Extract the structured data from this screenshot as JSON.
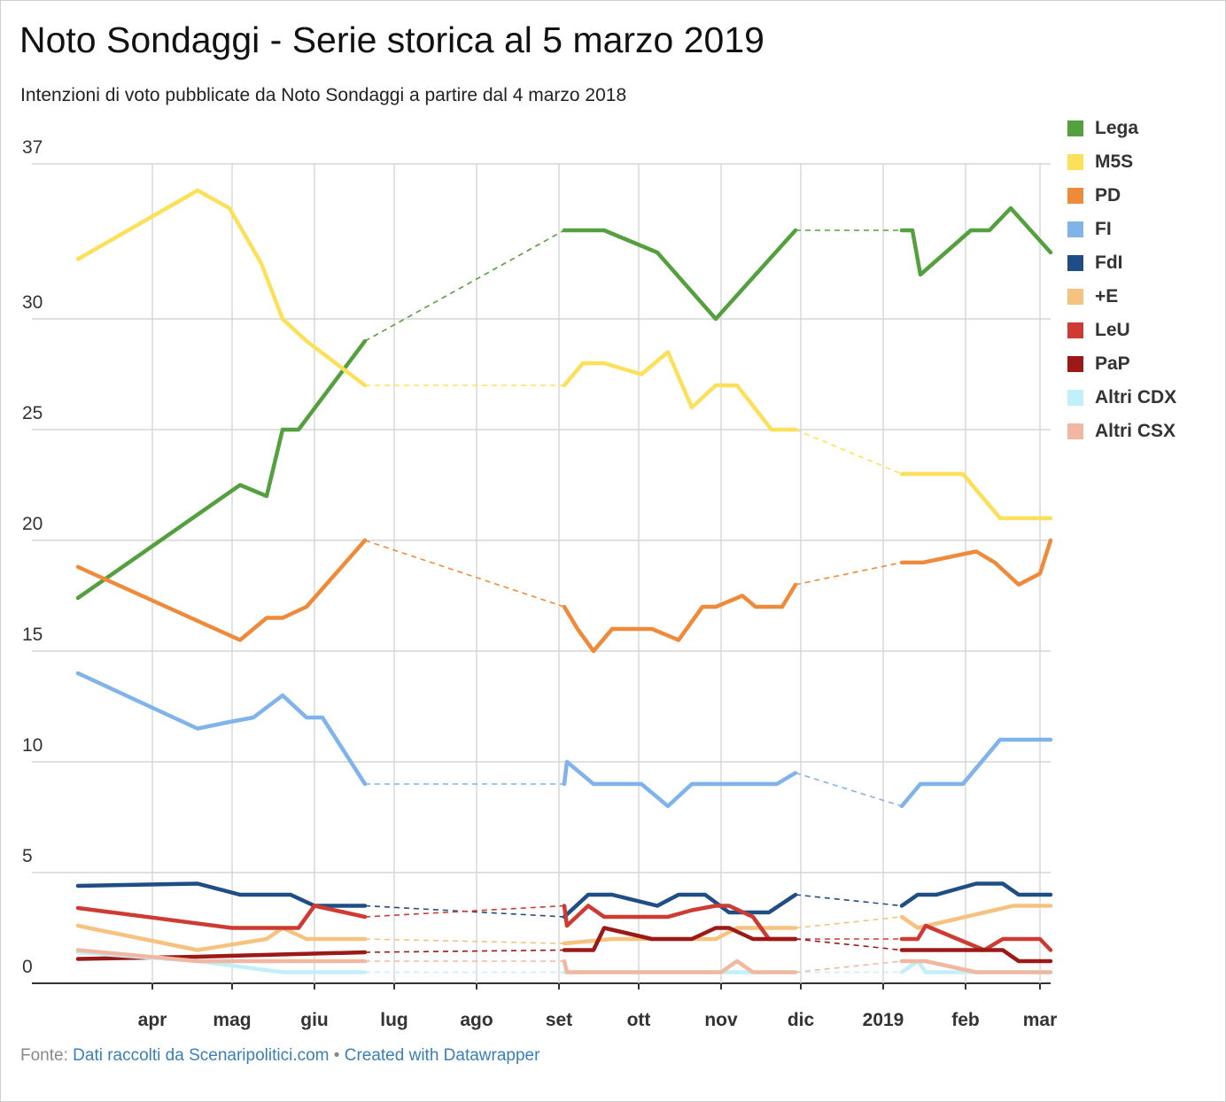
{
  "title": "Noto Sondaggi - Serie storica al 5 marzo 2019",
  "subtitle": "Intenzioni di voto pubblicate da Noto Sondaggi a partire dal 4 marzo 2018",
  "footer": {
    "source_prefix": "Fonte:",
    "source_link": "Dati raccolti da Scenaripolitici.com",
    "separator": "•",
    "credit_link": "Created with Datawrapper"
  },
  "chart_data": {
    "type": "line",
    "ylim": [
      0,
      37
    ],
    "ylabels": [
      {
        "value": 0,
        "label": "0"
      },
      {
        "value": 5,
        "label": "5"
      },
      {
        "value": 10,
        "label": "10"
      },
      {
        "value": 15,
        "label": "15"
      },
      {
        "value": 20,
        "label": "20"
      },
      {
        "value": 25,
        "label": "25"
      },
      {
        "value": 30,
        "label": "30"
      },
      {
        "value": 37,
        "label": "37"
      }
    ],
    "xlim": [
      "2018-03-04",
      "2019-03-05"
    ],
    "month_ticks": [
      {
        "date": "2018-04-01",
        "label": "apr"
      },
      {
        "date": "2018-05-01",
        "label": "mag"
      },
      {
        "date": "2018-06-01",
        "label": "giu"
      },
      {
        "date": "2018-07-01",
        "label": "lug"
      },
      {
        "date": "2018-08-01",
        "label": "ago"
      },
      {
        "date": "2018-09-01",
        "label": "set"
      },
      {
        "date": "2018-10-01",
        "label": "ott"
      },
      {
        "date": "2018-11-01",
        "label": "nov"
      },
      {
        "date": "2018-12-01",
        "label": "dic"
      },
      {
        "date": "2019-01-01",
        "label": "2019"
      },
      {
        "date": "2019-02-01",
        "label": "feb"
      },
      {
        "date": "2019-03-01",
        "label": "mar"
      }
    ],
    "gaps": [
      [
        "2018-06-20",
        "2018-09-03"
      ],
      [
        "2018-11-29",
        "2019-01-08"
      ]
    ],
    "series": [
      {
        "name": "Lega",
        "color": "#55a03e",
        "points": [
          [
            "2018-03-04",
            17.4
          ],
          [
            "2018-05-04",
            22.5
          ],
          [
            "2018-05-14",
            22
          ],
          [
            "2018-05-20",
            25
          ],
          [
            "2018-05-26",
            25
          ],
          [
            "2018-06-20",
            29
          ],
          [
            "2018-09-03",
            34
          ],
          [
            "2018-09-18",
            34
          ],
          [
            "2018-10-08",
            33
          ],
          [
            "2018-10-30",
            30
          ],
          [
            "2018-11-29",
            34
          ],
          [
            "2019-01-08",
            34
          ],
          [
            "2019-01-12",
            34
          ],
          [
            "2019-01-15",
            32
          ],
          [
            "2019-02-03",
            34
          ],
          [
            "2019-02-10",
            34
          ],
          [
            "2019-02-18",
            35
          ],
          [
            "2019-03-05",
            33
          ]
        ]
      },
      {
        "name": "M5S",
        "color": "#fde05a",
        "points": [
          [
            "2018-03-04",
            32.7
          ],
          [
            "2018-04-18",
            35.8
          ],
          [
            "2018-04-30",
            35
          ],
          [
            "2018-05-12",
            32.5
          ],
          [
            "2018-05-20",
            30
          ],
          [
            "2018-05-29",
            29
          ],
          [
            "2018-06-20",
            27
          ],
          [
            "2018-09-03",
            27
          ],
          [
            "2018-09-10",
            28
          ],
          [
            "2018-09-18",
            28
          ],
          [
            "2018-10-02",
            27.5
          ],
          [
            "2018-10-12",
            28.5
          ],
          [
            "2018-10-21",
            26
          ],
          [
            "2018-10-30",
            27
          ],
          [
            "2018-11-07",
            27
          ],
          [
            "2018-11-20",
            25
          ],
          [
            "2018-11-29",
            25
          ],
          [
            "2019-01-08",
            23
          ],
          [
            "2019-01-31",
            23
          ],
          [
            "2019-02-14",
            21
          ],
          [
            "2019-03-05",
            21
          ]
        ]
      },
      {
        "name": "PD",
        "color": "#ef8a3a",
        "points": [
          [
            "2018-03-04",
            18.8
          ],
          [
            "2018-05-04",
            15.5
          ],
          [
            "2018-05-14",
            16.5
          ],
          [
            "2018-05-20",
            16.5
          ],
          [
            "2018-05-29",
            17
          ],
          [
            "2018-06-20",
            20
          ],
          [
            "2018-09-03",
            17
          ],
          [
            "2018-09-08",
            16
          ],
          [
            "2018-09-14",
            15
          ],
          [
            "2018-09-21",
            16
          ],
          [
            "2018-10-06",
            16
          ],
          [
            "2018-10-16",
            15.5
          ],
          [
            "2018-10-25",
            17
          ],
          [
            "2018-10-30",
            17
          ],
          [
            "2018-11-09",
            17.5
          ],
          [
            "2018-11-14",
            17
          ],
          [
            "2018-11-24",
            17
          ],
          [
            "2018-11-29",
            18
          ],
          [
            "2019-01-08",
            19
          ],
          [
            "2019-01-16",
            19
          ],
          [
            "2019-02-05",
            19.5
          ],
          [
            "2019-02-12",
            19
          ],
          [
            "2019-02-21",
            18
          ],
          [
            "2019-03-01",
            18.5
          ],
          [
            "2019-03-05",
            20
          ]
        ]
      },
      {
        "name": "FI",
        "color": "#7fb3ea",
        "points": [
          [
            "2018-03-04",
            14
          ],
          [
            "2018-04-18",
            11.5
          ],
          [
            "2018-04-30",
            11.8
          ],
          [
            "2018-05-09",
            12
          ],
          [
            "2018-05-20",
            13
          ],
          [
            "2018-05-29",
            12
          ],
          [
            "2018-06-04",
            12
          ],
          [
            "2018-06-20",
            9
          ],
          [
            "2018-09-03",
            9
          ],
          [
            "2018-09-04",
            10
          ],
          [
            "2018-09-14",
            9
          ],
          [
            "2018-10-02",
            9
          ],
          [
            "2018-10-12",
            8
          ],
          [
            "2018-10-21",
            9
          ],
          [
            "2018-11-22",
            9
          ],
          [
            "2018-11-29",
            9.5
          ],
          [
            "2019-01-08",
            8
          ],
          [
            "2019-01-15",
            9
          ],
          [
            "2019-01-31",
            9
          ],
          [
            "2019-02-14",
            11
          ],
          [
            "2019-03-05",
            11
          ]
        ]
      },
      {
        "name": "FdI",
        "color": "#1f4e86",
        "points": [
          [
            "2018-03-04",
            4.4
          ],
          [
            "2018-04-18",
            4.5
          ],
          [
            "2018-05-04",
            4
          ],
          [
            "2018-05-23",
            4
          ],
          [
            "2018-06-01",
            3.5
          ],
          [
            "2018-06-20",
            3.5
          ],
          [
            "2018-09-03",
            3
          ],
          [
            "2018-09-12",
            4
          ],
          [
            "2018-09-21",
            4
          ],
          [
            "2018-10-08",
            3.5
          ],
          [
            "2018-10-16",
            4
          ],
          [
            "2018-10-26",
            4
          ],
          [
            "2018-11-04",
            3.2
          ],
          [
            "2018-11-19",
            3.2
          ],
          [
            "2018-11-29",
            4
          ],
          [
            "2019-01-08",
            3.5
          ],
          [
            "2019-01-14",
            4
          ],
          [
            "2019-01-21",
            4
          ],
          [
            "2019-02-05",
            4.5
          ],
          [
            "2019-02-15",
            4.5
          ],
          [
            "2019-02-21",
            4
          ],
          [
            "2019-03-05",
            4
          ]
        ]
      },
      {
        "name": "+E",
        "color": "#f6c27f",
        "points": [
          [
            "2018-03-04",
            2.6
          ],
          [
            "2018-04-18",
            1.5
          ],
          [
            "2018-05-14",
            2
          ],
          [
            "2018-05-20",
            2.5
          ],
          [
            "2018-05-29",
            2
          ],
          [
            "2018-06-20",
            2
          ],
          [
            "2018-09-03",
            1.8
          ],
          [
            "2018-09-21",
            2
          ],
          [
            "2018-10-21",
            2
          ],
          [
            "2018-10-30",
            2
          ],
          [
            "2018-11-07",
            2.5
          ],
          [
            "2018-11-29",
            2.5
          ],
          [
            "2019-01-08",
            3
          ],
          [
            "2019-01-14",
            2.5
          ],
          [
            "2019-02-19",
            3.5
          ],
          [
            "2019-03-05",
            3.5
          ]
        ]
      },
      {
        "name": "LeU",
        "color": "#cd3b33",
        "points": [
          [
            "2018-03-04",
            3.4
          ],
          [
            "2018-05-01",
            2.5
          ],
          [
            "2018-05-26",
            2.5
          ],
          [
            "2018-06-01",
            3.5
          ],
          [
            "2018-06-20",
            3
          ],
          [
            "2018-09-03",
            3.5
          ],
          [
            "2018-09-04",
            2.6
          ],
          [
            "2018-09-12",
            3.5
          ],
          [
            "2018-09-18",
            3
          ],
          [
            "2018-10-12",
            3
          ],
          [
            "2018-10-21",
            3.3
          ],
          [
            "2018-10-30",
            3.5
          ],
          [
            "2018-11-04",
            3.5
          ],
          [
            "2018-11-13",
            3
          ],
          [
            "2018-11-19",
            2
          ],
          [
            "2018-11-29",
            2
          ],
          [
            "2019-01-08",
            2
          ],
          [
            "2019-01-14",
            2
          ],
          [
            "2019-01-17",
            2.6
          ],
          [
            "2019-02-08",
            1.5
          ],
          [
            "2019-02-15",
            2
          ],
          [
            "2019-03-01",
            2
          ],
          [
            "2019-03-05",
            1.5
          ]
        ]
      },
      {
        "name": "PaP",
        "color": "#9b1a17",
        "points": [
          [
            "2018-03-04",
            1.1
          ],
          [
            "2018-04-18",
            1.2
          ],
          [
            "2018-06-20",
            1.4
          ],
          [
            "2018-09-03",
            1.5
          ],
          [
            "2018-09-14",
            1.5
          ],
          [
            "2018-09-18",
            2.5
          ],
          [
            "2018-10-06",
            2
          ],
          [
            "2018-10-21",
            2
          ],
          [
            "2018-10-30",
            2.5
          ],
          [
            "2018-11-04",
            2.5
          ],
          [
            "2018-11-13",
            2
          ],
          [
            "2018-11-29",
            2
          ],
          [
            "2019-01-08",
            1.5
          ],
          [
            "2019-02-15",
            1.5
          ],
          [
            "2019-02-21",
            1
          ],
          [
            "2019-03-05",
            1
          ]
        ]
      },
      {
        "name": "Altri CDX",
        "color": "#c2f0fa",
        "points": [
          [
            "2018-03-04",
            1.4
          ],
          [
            "2018-04-18",
            1
          ],
          [
            "2018-05-20",
            0.5
          ],
          [
            "2018-06-20",
            0.5
          ],
          [
            "2018-09-03",
            0.5
          ],
          [
            "2018-09-14",
            0.5
          ],
          [
            "2018-11-29",
            0.5
          ],
          [
            "2019-01-08",
            0.5
          ],
          [
            "2019-01-14",
            1
          ],
          [
            "2019-01-17",
            0.5
          ],
          [
            "2019-03-05",
            0.5
          ]
        ]
      },
      {
        "name": "Altri CSX",
        "color": "#f1b8a1",
        "points": [
          [
            "2018-03-04",
            1.5
          ],
          [
            "2018-04-18",
            1
          ],
          [
            "2018-05-14",
            1
          ],
          [
            "2018-06-20",
            1
          ],
          [
            "2018-09-03",
            1
          ],
          [
            "2018-09-04",
            0.5
          ],
          [
            "2018-11-01",
            0.5
          ],
          [
            "2018-11-07",
            1
          ],
          [
            "2018-11-13",
            0.5
          ],
          [
            "2018-11-29",
            0.5
          ],
          [
            "2019-01-08",
            1
          ],
          [
            "2019-01-17",
            1
          ],
          [
            "2019-02-05",
            0.5
          ],
          [
            "2019-03-05",
            0.5
          ]
        ]
      }
    ]
  }
}
